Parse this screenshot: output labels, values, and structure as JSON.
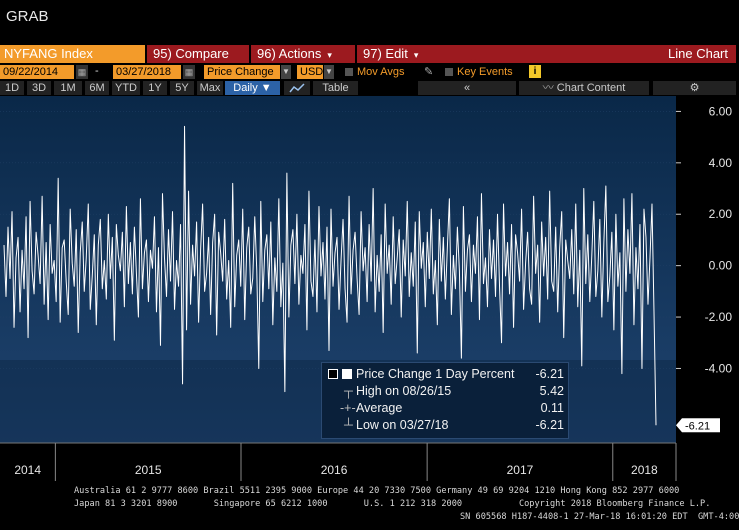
{
  "window": {
    "title": "GRAB"
  },
  "toolbar": {
    "ticker": "NYFANG Index",
    "compare": "95) Compare",
    "actions": "96) Actions",
    "edit": "97) Edit",
    "view": "Line Chart",
    "start_date": "09/22/2014",
    "end_date": "03/27/2018",
    "field": "Price Change",
    "currency": "USD",
    "mov_avgs": "Mov Avgs",
    "key_events": "Key Events",
    "info": "i"
  },
  "period_bar": {
    "periods": [
      "1D",
      "3D",
      "1M",
      "6M",
      "YTD",
      "1Y",
      "5Y",
      "Max"
    ],
    "frequency": "Daily ▼",
    "table": "Table",
    "collapse": "«",
    "chart_content": "Chart Content",
    "settings": "⚙"
  },
  "colors": {
    "background": "#000000",
    "plot_bg_top": "#0a2848",
    "plot_bg_bottom": "#1f4470",
    "line": "#ffffff",
    "accent": "#f39b2a",
    "brand_red": "#9c1a1f"
  },
  "chart_data": {
    "type": "line",
    "title": "",
    "series": [
      {
        "name": "Price Change 1 Day Percent",
        "start": "2014-09-22",
        "end": "2018-03-27",
        "values": [
          0.8,
          -1.2,
          1.5,
          -0.5,
          2.1,
          -2.4,
          0.3,
          1.1,
          -1.8,
          0.6,
          -0.9,
          1.9,
          -2.8,
          2.5,
          -0.2,
          -1.1,
          1.3,
          0.4,
          -0.7,
          2.7,
          -1.5,
          0.9,
          -2.1,
          1.6,
          -0.3,
          0.2,
          -1.4,
          3.4,
          -2.2,
          0.7,
          1.0,
          -0.6,
          -1.9,
          2.2,
          0.1,
          -0.8,
          1.4,
          -2.6,
          0.5,
          1.7,
          -1.0,
          0.3,
          2.4,
          -1.7,
          -0.4,
          1.2,
          -2.3,
          0.8,
          1.8,
          -0.9,
          0.2,
          -1.3,
          2.0,
          -0.5,
          1.1,
          -2.9,
          1.6,
          0.4,
          -0.2,
          1.3,
          -1.6,
          2.3,
          -0.7,
          0.9,
          -1.1,
          1.5,
          -0.3,
          -2.0,
          2.6,
          -0.9,
          0.5,
          1.0,
          -1.4,
          0.6,
          -0.1,
          1.9,
          -1.8,
          0.7,
          -3.1,
          2.8,
          0.3,
          -1.2,
          1.4,
          -0.6,
          2.1,
          -1.7,
          0.2,
          -0.8,
          1.6,
          -4.6,
          5.42,
          -2.5,
          2.9,
          -1.5,
          0.8,
          -0.4,
          1.7,
          -2.2,
          0.6,
          2.4,
          -1.0,
          -0.3,
          1.1,
          -1.9,
          0.9,
          2.0,
          -2.7,
          1.3,
          0.5,
          -0.6,
          1.8,
          -1.3,
          0.2,
          -2.4,
          3.2,
          -1.6,
          0.4,
          1.0,
          -0.8,
          2.2,
          -2.1,
          0.7,
          1.5,
          -1.1,
          -0.5,
          1.9,
          -0.2,
          -4.0,
          2.5,
          -1.4,
          0.6,
          1.2,
          -0.9,
          1.7,
          -2.3,
          0.3,
          -1.0,
          2.6,
          -1.6,
          0.1,
          -4.9,
          3.6,
          -2.0,
          0.8,
          1.4,
          -0.7,
          2.0,
          -1.5,
          0.4,
          -0.3,
          1.6,
          -2.5,
          2.9,
          -0.6,
          -1.2,
          1.0,
          -1.8,
          2.3,
          -0.4,
          0.9,
          -1.3,
          1.5,
          -3.3,
          2.2,
          -0.8,
          0.5,
          1.1,
          -1.7,
          0.2,
          1.8,
          -0.9,
          -2.2,
          2.7,
          -1.1,
          0.6,
          1.3,
          -0.5,
          -1.9,
          2.1,
          -0.2,
          0.7,
          -1.4,
          1.6,
          -0.6,
          3.0,
          -1.8,
          0.4,
          -1.0,
          1.2,
          -2.6,
          2.4,
          -0.3,
          0.8,
          -1.5,
          1.9,
          -0.7,
          0.3,
          1.4,
          -2.0,
          1.0,
          -0.4,
          2.5,
          -1.2,
          0.5,
          -0.8,
          1.7,
          -3.4,
          2.1,
          -0.1,
          0.9,
          -1.6,
          1.3,
          -0.5,
          2.2,
          -1.1,
          0.2,
          -2.3,
          1.8,
          -0.6,
          1.1,
          -1.3,
          0.7,
          2.6,
          -1.9,
          0.4,
          -0.9,
          1.5,
          -0.2,
          -3.6,
          2.3,
          -1.0,
          0.6,
          1.2,
          -1.4,
          0.8,
          -0.3,
          1.9,
          -2.1,
          2.8,
          -0.7,
          0.3,
          -1.6,
          1.4,
          -0.5,
          1.0,
          -1.2,
          2.0,
          -0.8,
          -3.0,
          2.4,
          -0.4,
          0.9,
          -1.1,
          1.6,
          -2.4,
          1.2,
          0.5,
          -0.6,
          2.2,
          -1.7,
          0.1,
          1.3,
          -0.9,
          -1.5,
          2.7,
          -0.3,
          0.8,
          -2.2,
          1.7,
          -0.4,
          1.1,
          -1.3,
          2.9,
          -0.6,
          -1.0,
          1.5,
          -1.8,
          0.7,
          2.1,
          -2.8,
          1.0,
          0.2,
          -0.5,
          1.4,
          -1.1,
          2.4,
          -1.6,
          0.6,
          -3.9,
          3.0,
          -0.7,
          1.2,
          -1.4,
          0.4,
          2.5,
          -1.2,
          -0.2,
          1.8,
          -2.0,
          0.9,
          3.1,
          -1.4,
          -0.4,
          1.3,
          -2.5,
          2.0,
          -0.8,
          0.5,
          -4.2,
          2.6,
          -1.0,
          1.4,
          -0.3,
          2.8,
          -2.3,
          0.7,
          -0.9,
          1.6,
          -4.0,
          2.2,
          1.1,
          -1.5,
          0.3,
          2.4,
          -1.8,
          -6.21
        ]
      }
    ],
    "y_ticks": [
      "6.00",
      "4.00",
      "2.00",
      "0.00",
      "-2.00",
      "-4.00"
    ],
    "ylim": [
      -6.9,
      6.6
    ],
    "x_ticks": [
      "2014",
      "2015",
      "2016",
      "2017",
      "2018"
    ],
    "last_value_label": "-6.21",
    "legend": {
      "placement": "bottom-right",
      "rows": [
        {
          "label": "Price Change 1 Day Percent",
          "value": "-6.21"
        },
        {
          "label": "High on 08/26/15",
          "value": "5.42"
        },
        {
          "label": "Average",
          "value": "0.11"
        },
        {
          "label": "Low on 03/27/18",
          "value": "-6.21"
        }
      ]
    }
  },
  "footer": {
    "line1": "Australia 61 2 9777 8600 Brazil 5511 2395 9000 Europe 44 20 7330 7500 Germany 49 69 9204 1210 Hong Kong 852 2977 6000",
    "line2": "Japan 81 3 3201 8900       Singapore 65 6212 1000       U.S. 1 212 318 2000           Copyright 2018 Bloomberg Finance L.P.",
    "line3": "SN 605568 H187-4408-1 27-Mar-18 16:01:20 EDT  GMT-4:00"
  }
}
